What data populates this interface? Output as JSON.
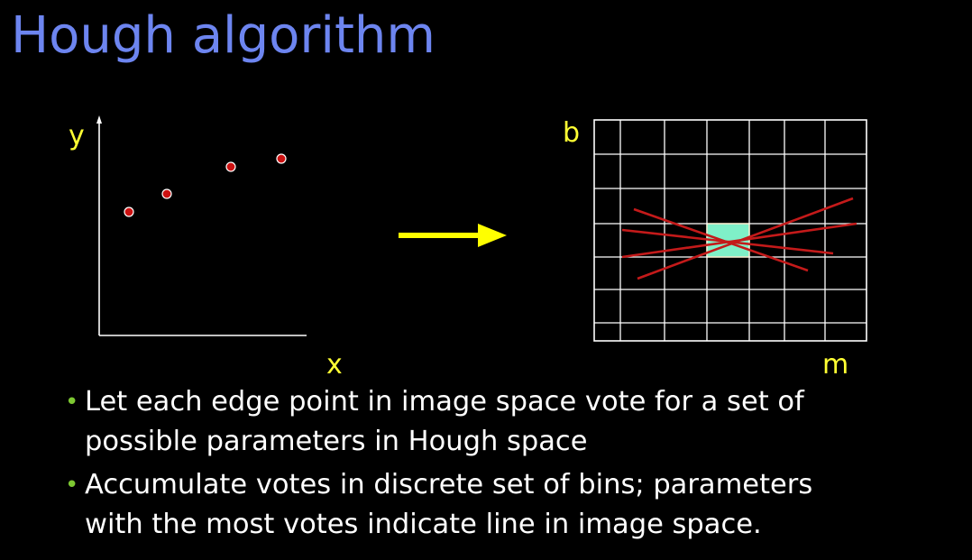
{
  "title": "Hough algorithm",
  "image_space": {
    "y_label": "y",
    "x_label": "x"
  },
  "hough_space": {
    "y_label": "b",
    "x_label": "m"
  },
  "colors": {
    "title": "#6d85f0",
    "axis_label": "#ffff33",
    "arrow": "#ffff00",
    "point": "#cc1111",
    "vote_line": "#c41a1a",
    "highlight_bin": "#7ff0c8",
    "bullet_marker": "#7dc832"
  },
  "icons": {
    "bullet": "•"
  },
  "bullets": [
    {
      "line1": "Let each edge point in image space vote for a set of",
      "line2": "possible parameters in Hough space"
    },
    {
      "line1": "Accumulate votes in discrete set of bins; parameters",
      "line2": "with the most votes indicate line in image space."
    }
  ]
}
